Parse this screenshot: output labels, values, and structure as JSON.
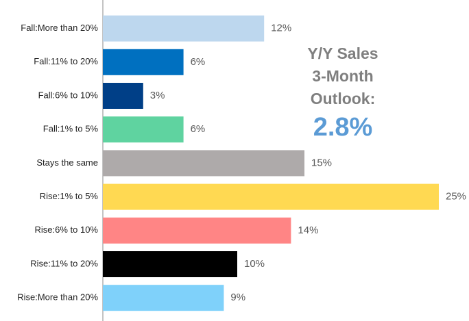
{
  "chart_data": {
    "type": "bar",
    "orientation": "horizontal",
    "categories": [
      "Fall:More than 20%",
      "Fall:11% to 20%",
      "Fall:6% to 10%",
      "Fall:1% to 5%",
      "Stays the same",
      "Rise:1% to 5%",
      "Rise:6% to 10%",
      "Rise:11% to 20%",
      "Rise:More than 20%"
    ],
    "values": [
      12,
      6,
      3,
      6,
      15,
      25,
      14,
      10,
      9
    ],
    "value_labels": [
      "12%",
      "6%",
      "3%",
      "6%",
      "15%",
      "25%",
      "14%",
      "10%",
      "9%"
    ],
    "colors": [
      "#bdd7ee",
      "#0070c0",
      "#003f87",
      "#5fd3a0",
      "#aeaaaa",
      "#ffd952",
      "#ff8585",
      "#000000",
      "#7fd1fa"
    ],
    "annotation": {
      "lines": [
        "Y/Y Sales",
        "3-Month",
        "Outlook:"
      ],
      "value": "2.8%"
    }
  }
}
